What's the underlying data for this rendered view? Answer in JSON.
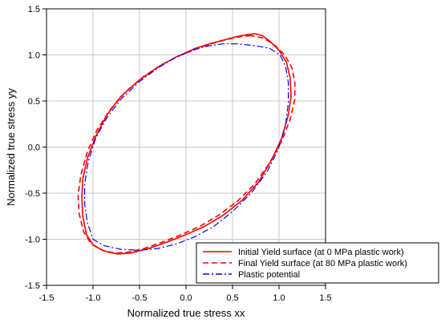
{
  "chart_data": {
    "type": "line",
    "title": "",
    "xlabel": "Normalized true stress xx",
    "ylabel": "Normalized true stress yy",
    "xlim": [
      -1.5,
      1.5
    ],
    "ylim": [
      -1.5,
      1.5
    ],
    "xticks": [
      "-1.5",
      "-1.0",
      "-0.5",
      "0.0",
      "0.5",
      "1.0",
      "1.5"
    ],
    "yticks": [
      "-1.5",
      "-1.0",
      "-0.5",
      "0.0",
      "0.5",
      "1.0",
      "1.5"
    ],
    "grid": true,
    "legend_position": "bottom-right",
    "series": [
      {
        "name": "Initial Yield surface (at 0 MPa plastic work)",
        "color": "#ff0000",
        "style": "solid",
        "points": [
          [
            0.74,
            1.23
          ],
          [
            0.66,
            1.22
          ],
          [
            0.55,
            1.2
          ],
          [
            0.4,
            1.16
          ],
          [
            0.25,
            1.12
          ],
          [
            0.1,
            1.07
          ],
          [
            -0.1,
            0.98
          ],
          [
            -0.3,
            0.87
          ],
          [
            -0.5,
            0.73
          ],
          [
            -0.7,
            0.55
          ],
          [
            -0.85,
            0.35
          ],
          [
            -0.97,
            0.12
          ],
          [
            -1.06,
            -0.12
          ],
          [
            -1.11,
            -0.35
          ],
          [
            -1.12,
            -0.55
          ],
          [
            -1.11,
            -0.75
          ],
          [
            -1.07,
            -0.95
          ],
          [
            -1.0,
            -1.06
          ],
          [
            -0.88,
            -1.13
          ],
          [
            -0.74,
            -1.16
          ],
          [
            -0.6,
            -1.15
          ],
          [
            -0.4,
            -1.1
          ],
          [
            -0.2,
            -1.03
          ],
          [
            0.0,
            -0.95
          ],
          [
            0.2,
            -0.86
          ],
          [
            0.4,
            -0.74
          ],
          [
            0.6,
            -0.58
          ],
          [
            0.78,
            -0.38
          ],
          [
            0.92,
            -0.14
          ],
          [
            1.03,
            0.1
          ],
          [
            1.1,
            0.35
          ],
          [
            1.13,
            0.55
          ],
          [
            1.12,
            0.75
          ],
          [
            1.08,
            0.92
          ],
          [
            1.0,
            1.05
          ],
          [
            0.9,
            1.15
          ],
          [
            0.82,
            1.21
          ],
          [
            0.74,
            1.23
          ]
        ]
      },
      {
        "name": "Final Yield surface (at 80 MPa plastic work)",
        "color": "#ff0000",
        "style": "dashed",
        "points": [
          [
            0.7,
            1.21
          ],
          [
            0.6,
            1.2
          ],
          [
            0.45,
            1.17
          ],
          [
            0.3,
            1.13
          ],
          [
            0.15,
            1.08
          ],
          [
            -0.05,
            1.0
          ],
          [
            -0.25,
            0.9
          ],
          [
            -0.45,
            0.77
          ],
          [
            -0.65,
            0.6
          ],
          [
            -0.82,
            0.4
          ],
          [
            -0.96,
            0.18
          ],
          [
            -1.06,
            -0.05
          ],
          [
            -1.13,
            -0.3
          ],
          [
            -1.16,
            -0.52
          ],
          [
            -1.15,
            -0.72
          ],
          [
            -1.1,
            -0.92
          ],
          [
            -1.02,
            -1.05
          ],
          [
            -0.9,
            -1.12
          ],
          [
            -0.76,
            -1.15
          ],
          [
            -0.62,
            -1.14
          ],
          [
            -0.45,
            -1.1
          ],
          [
            -0.25,
            -1.03
          ],
          [
            -0.05,
            -0.95
          ],
          [
            0.15,
            -0.86
          ],
          [
            0.35,
            -0.74
          ],
          [
            0.55,
            -0.59
          ],
          [
            0.74,
            -0.4
          ],
          [
            0.9,
            -0.17
          ],
          [
            1.03,
            0.07
          ],
          [
            1.12,
            0.3
          ],
          [
            1.17,
            0.52
          ],
          [
            1.17,
            0.7
          ],
          [
            1.14,
            0.86
          ],
          [
            1.06,
            1.0
          ],
          [
            0.96,
            1.1
          ],
          [
            0.84,
            1.18
          ],
          [
            0.7,
            1.21
          ]
        ]
      },
      {
        "name": "Plastic potential",
        "color": "#0000ff",
        "style": "dashdot",
        "points": [
          [
            0.55,
            1.12
          ],
          [
            0.4,
            1.12
          ],
          [
            0.25,
            1.1
          ],
          [
            0.1,
            1.06
          ],
          [
            -0.1,
            0.98
          ],
          [
            -0.3,
            0.86
          ],
          [
            -0.5,
            0.71
          ],
          [
            -0.7,
            0.52
          ],
          [
            -0.85,
            0.32
          ],
          [
            -0.97,
            0.1
          ],
          [
            -1.05,
            -0.15
          ],
          [
            -1.09,
            -0.4
          ],
          [
            -1.09,
            -0.62
          ],
          [
            -1.06,
            -0.82
          ],
          [
            -1.0,
            -1.0
          ],
          [
            -0.88,
            -1.07
          ],
          [
            -0.7,
            -1.11
          ],
          [
            -0.5,
            -1.12
          ],
          [
            -0.3,
            -1.1
          ],
          [
            -0.1,
            -1.05
          ],
          [
            0.1,
            -0.97
          ],
          [
            0.3,
            -0.86
          ],
          [
            0.5,
            -0.7
          ],
          [
            0.7,
            -0.5
          ],
          [
            0.87,
            -0.27
          ],
          [
            0.99,
            -0.03
          ],
          [
            1.07,
            0.23
          ],
          [
            1.1,
            0.48
          ],
          [
            1.1,
            0.7
          ],
          [
            1.07,
            0.88
          ],
          [
            1.01,
            1.0
          ],
          [
            0.9,
            1.07
          ],
          [
            0.75,
            1.1
          ],
          [
            0.55,
            1.12
          ]
        ]
      }
    ]
  }
}
